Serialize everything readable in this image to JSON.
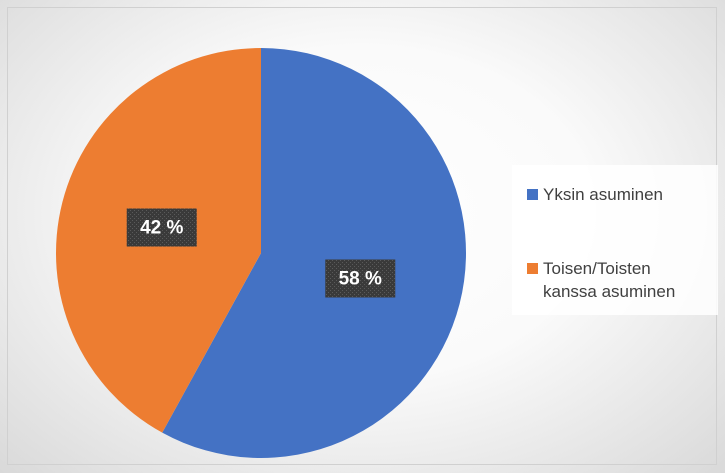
{
  "chart_data": {
    "type": "pie",
    "categories": [
      "Yksin asuminen",
      "Toisen/Toisten kanssa asuminen"
    ],
    "values": [
      58,
      42
    ],
    "value_labels": [
      "58 %",
      "42 %"
    ],
    "colors": [
      "#4472c4",
      "#ed7d31"
    ],
    "legend": "right"
  }
}
